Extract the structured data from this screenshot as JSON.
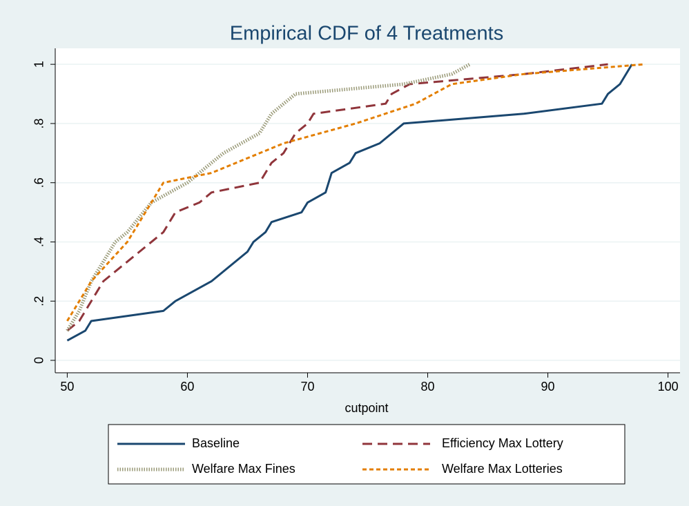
{
  "chart_data": {
    "type": "line",
    "title": "Empirical CDF of 4 Treatments",
    "x_label": "cutpoint",
    "xlim": [
      49,
      101
    ],
    "xticks": [
      50,
      60,
      70,
      80,
      90,
      100
    ],
    "ylim": [
      -0.042,
      1.054
    ],
    "yticks": [
      {
        "value": 0,
        "label": "0"
      },
      {
        "value": 0.2,
        "label": ".2"
      },
      {
        "value": 0.4,
        "label": ".4"
      },
      {
        "value": 0.6,
        "label": ".6"
      },
      {
        "value": 0.8,
        "label": ".8"
      },
      {
        "value": 1,
        "label": "1"
      }
    ],
    "grid": true,
    "series": [
      {
        "name": "Baseline",
        "color": "#1a476f",
        "linestyle": "solid",
        "x": [
          50,
          51.5,
          52,
          58,
          59,
          62,
          65,
          65.5,
          66.5,
          67,
          69.5,
          70,
          71.5,
          72,
          73.5,
          74,
          76,
          78,
          88,
          94.5,
          95,
          96,
          97
        ],
        "values": [
          0.067,
          0.1,
          0.133,
          0.167,
          0.2,
          0.267,
          0.367,
          0.4,
          0.433,
          0.467,
          0.5,
          0.533,
          0.567,
          0.633,
          0.667,
          0.7,
          0.733,
          0.8,
          0.833,
          0.867,
          0.9,
          0.933,
          1
        ]
      },
      {
        "name": "Efficiency Max Lottery",
        "color": "#90353b",
        "linestyle": "dash",
        "x": [
          50,
          51,
          52,
          53,
          58,
          59,
          61,
          62,
          66,
          67,
          68,
          69,
          70,
          70.5,
          76.5,
          77,
          78.5,
          88,
          95
        ],
        "values": [
          0.1,
          0.133,
          0.2,
          0.267,
          0.433,
          0.5,
          0.533,
          0.567,
          0.6,
          0.667,
          0.7,
          0.767,
          0.8,
          0.833,
          0.867,
          0.9,
          0.933,
          0.967,
          1
        ]
      },
      {
        "name": "Welfare Max Fines",
        "color": "#9a9a78",
        "linestyle": "dot",
        "x": [
          50,
          51,
          52,
          53,
          54,
          55,
          57,
          60,
          62,
          63,
          66,
          67,
          69,
          78,
          82,
          83.5
        ],
        "values": [
          0.1,
          0.167,
          0.267,
          0.333,
          0.4,
          0.433,
          0.533,
          0.6,
          0.667,
          0.7,
          0.767,
          0.833,
          0.9,
          0.933,
          0.967,
          1
        ]
      },
      {
        "name": "Welfare Max Lotteries",
        "color": "#e37e00",
        "linestyle": "shortdash",
        "x": [
          50,
          52,
          55,
          57,
          58,
          62,
          68,
          74,
          79,
          82,
          88,
          98
        ],
        "values": [
          0.133,
          0.267,
          0.4,
          0.533,
          0.6,
          0.633,
          0.733,
          0.8,
          0.867,
          0.933,
          0.967,
          1
        ]
      }
    ]
  }
}
